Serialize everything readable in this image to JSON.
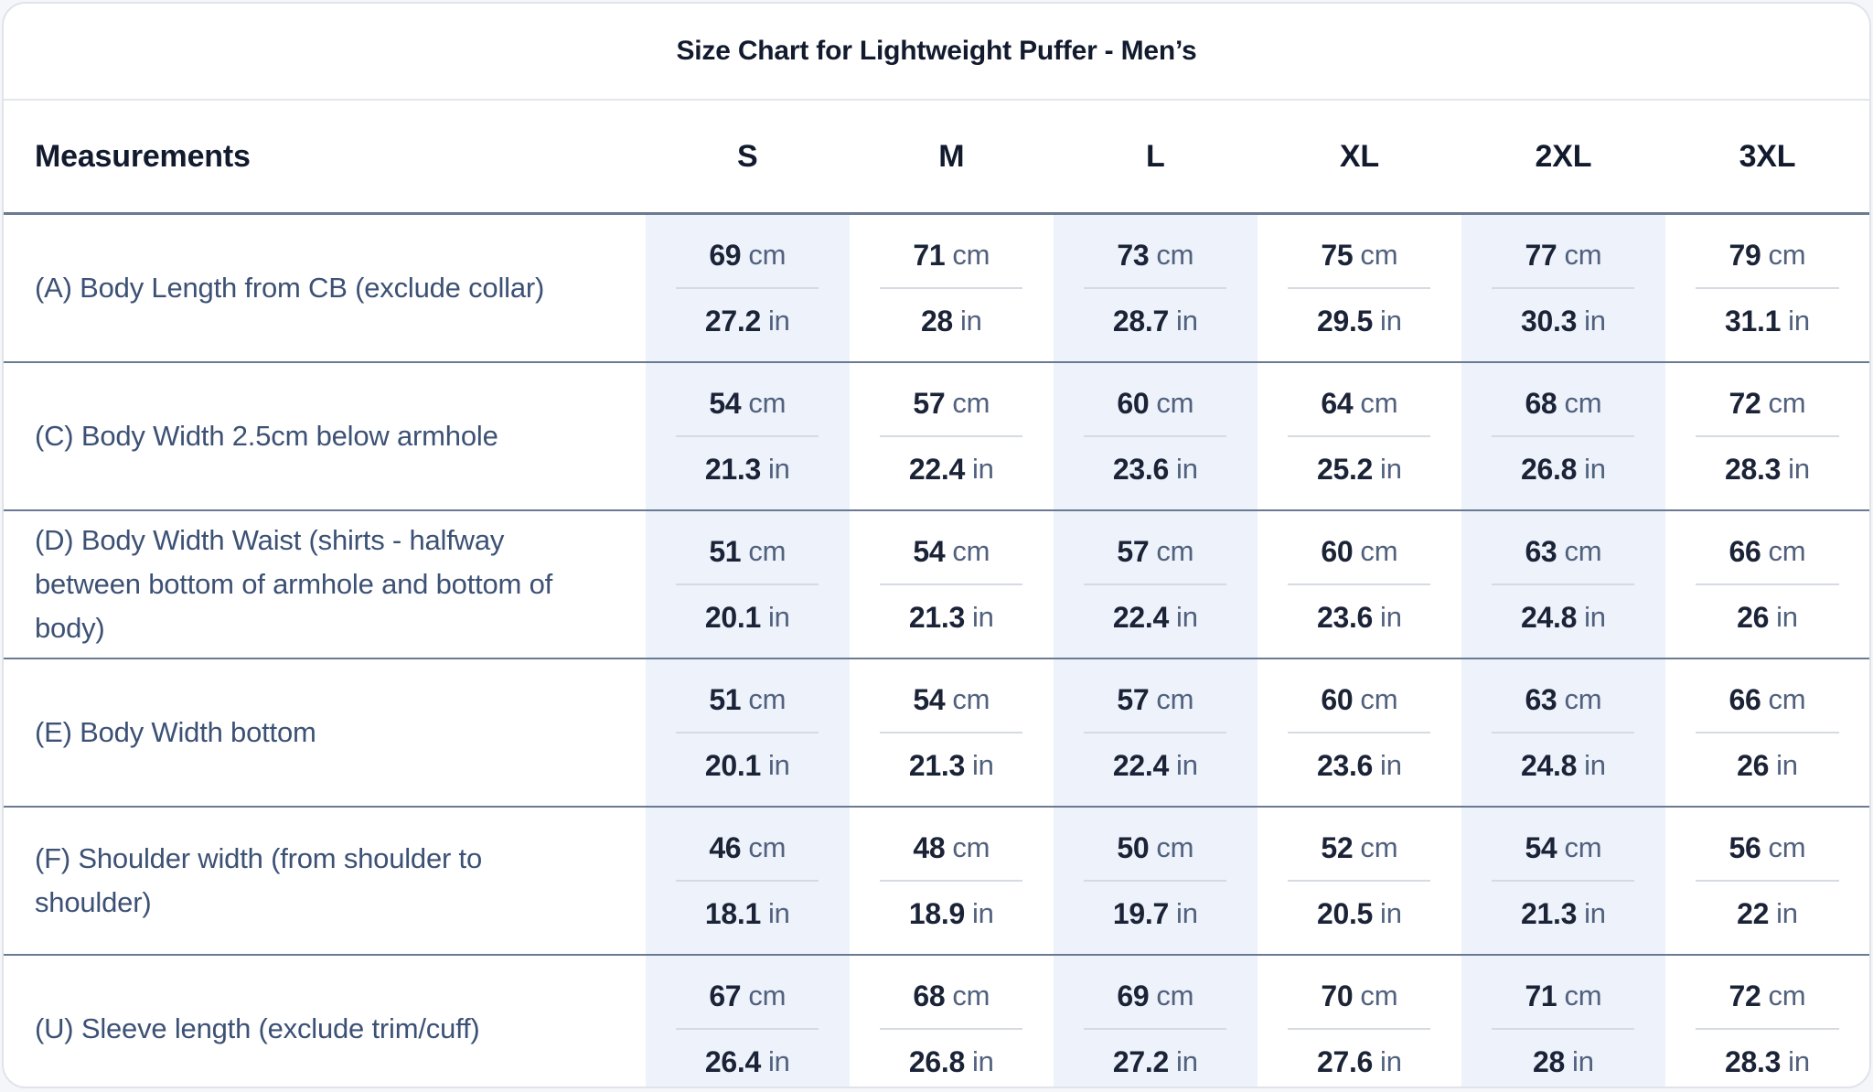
{
  "card": {
    "title": "Size Chart for Lightweight Puffer - Men’s"
  },
  "table": {
    "measurements_header": "Measurements",
    "size_headers": [
      "S",
      "M",
      "L",
      "XL",
      "2XL",
      "3XL"
    ],
    "unit_cm": "cm",
    "unit_in": "in",
    "rows": [
      {
        "label": "(A) Body Length from CB (exclude collar)",
        "cm": [
          "69",
          "71",
          "73",
          "75",
          "77",
          "79"
        ],
        "in": [
          "27.2",
          "28",
          "28.7",
          "29.5",
          "30.3",
          "31.1"
        ]
      },
      {
        "label": "(C) Body Width 2.5cm below armhole",
        "cm": [
          "54",
          "57",
          "60",
          "64",
          "68",
          "72"
        ],
        "in": [
          "21.3",
          "22.4",
          "23.6",
          "25.2",
          "26.8",
          "28.3"
        ]
      },
      {
        "label": "(D) Body Width Waist (shirts - halfway between bottom of armhole and bottom of body)",
        "cm": [
          "51",
          "54",
          "57",
          "60",
          "63",
          "66"
        ],
        "in": [
          "20.1",
          "21.3",
          "22.4",
          "23.6",
          "24.8",
          "26"
        ]
      },
      {
        "label": "(E) Body Width bottom",
        "cm": [
          "51",
          "54",
          "57",
          "60",
          "63",
          "66"
        ],
        "in": [
          "20.1",
          "21.3",
          "22.4",
          "23.6",
          "24.8",
          "26"
        ]
      },
      {
        "label": "(F) Shoulder width (from shoulder to shoulder)",
        "cm": [
          "46",
          "48",
          "50",
          "52",
          "54",
          "56"
        ],
        "in": [
          "18.1",
          "18.9",
          "19.7",
          "20.5",
          "21.3",
          "22"
        ]
      },
      {
        "label": "(U) Sleeve length (exclude trim/cuff)",
        "cm": [
          "67",
          "68",
          "69",
          "70",
          "71",
          "72"
        ],
        "in": [
          "26.4",
          "26.8",
          "27.2",
          "27.6",
          "28",
          "28.3"
        ]
      }
    ]
  },
  "colors": {
    "shaded_column_bg": "#edf2fb",
    "row_border": "#6b7a92",
    "card_border": "#e0e3e9",
    "title_text": "#121a2e",
    "label_text": "#3c5175",
    "value_text": "#1b2337",
    "unit_text": "#51617d",
    "cell_divider": "#d6dae2",
    "page_bg": "#f4f6f9"
  }
}
